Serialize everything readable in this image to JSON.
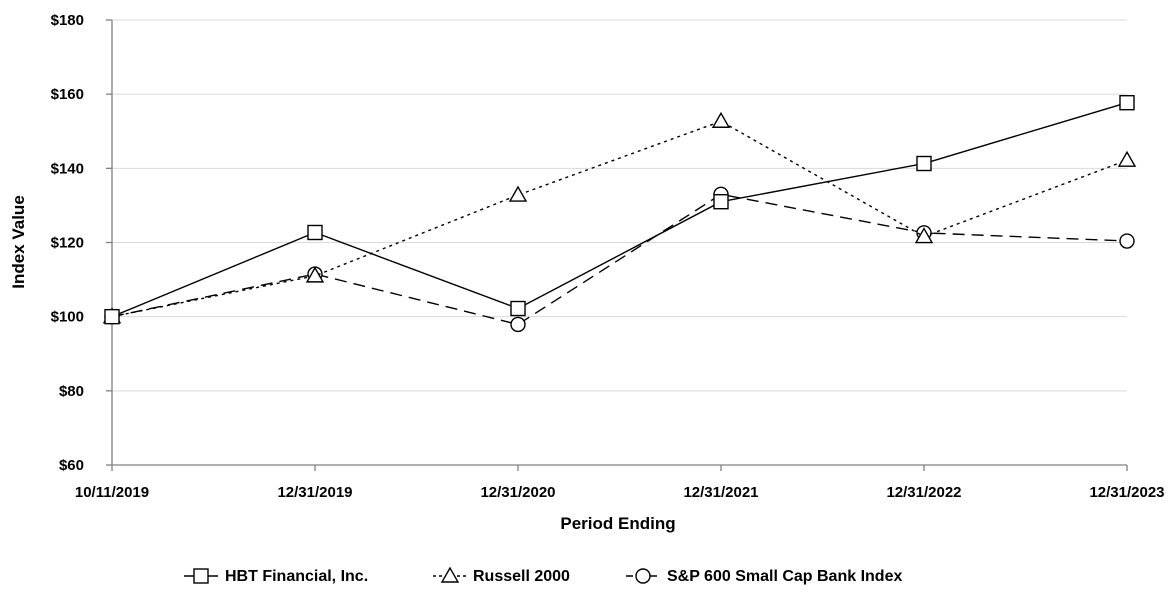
{
  "chart_data": {
    "type": "line",
    "xlabel": "Period Ending",
    "ylabel": "Index Value",
    "categories": [
      "10/11/2019",
      "12/31/2019",
      "12/31/2020",
      "12/31/2021",
      "12/31/2022",
      "12/31/2023"
    ],
    "ylim": [
      60,
      180
    ],
    "yticks": [
      60,
      80,
      100,
      120,
      140,
      160,
      180
    ],
    "ytick_labels": [
      "$60",
      "$80",
      "$100",
      "$120",
      "$140",
      "$160",
      "$180"
    ],
    "grid": "horizontal",
    "legend_position": "bottom",
    "series": [
      {
        "name": "HBT Financial, Inc.",
        "values": [
          100,
          122.7,
          102.2,
          131.0,
          141.3,
          157.7
        ],
        "marker": "square",
        "dash": "solid",
        "color": "#000000"
      },
      {
        "name": "Russell 2000",
        "values": [
          100,
          111.0,
          132.8,
          152.7,
          121.6,
          142.2
        ],
        "marker": "triangle",
        "dash": "dotted",
        "color": "#000000"
      },
      {
        "name": "S&P 600 Small Cap Bank Index",
        "values": [
          100,
          111.5,
          97.9,
          133.0,
          122.6,
          120.4
        ],
        "marker": "circle",
        "dash": "dashed",
        "color": "#000000"
      }
    ]
  }
}
